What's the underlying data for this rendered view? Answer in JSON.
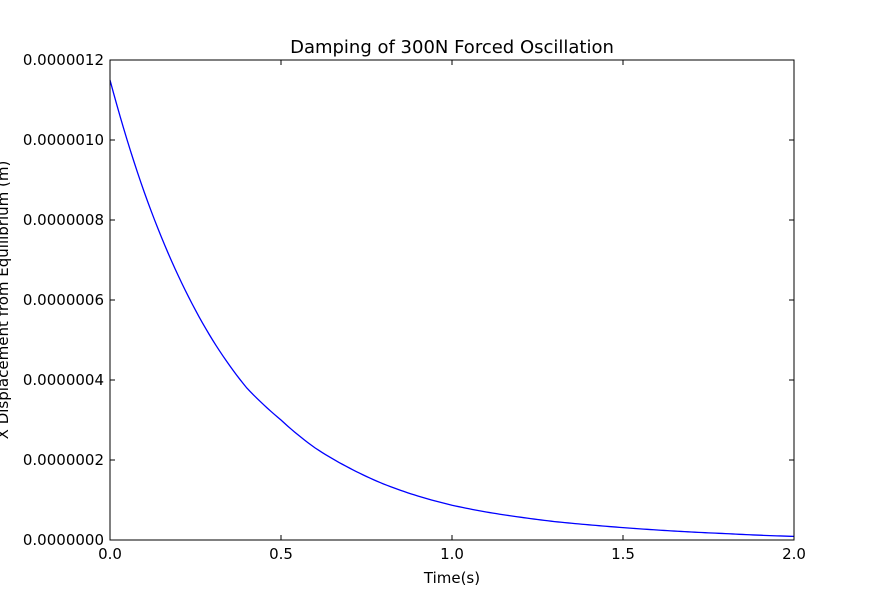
{
  "chart_data": {
    "type": "line",
    "title": "Damping of 300N Forced Oscillation",
    "xlabel": "Time(s)",
    "ylabel": "X Displacement from Equilibrium (m)",
    "xlim": [
      0,
      2.0
    ],
    "ylim": [
      0,
      1.2e-06
    ],
    "x_ticks": [
      0,
      0.5,
      1.0,
      1.5,
      2.0
    ],
    "x_tick_labels": [
      "0.0",
      "0.5",
      "1.0",
      "1.5",
      "2.0"
    ],
    "y_ticks": [
      0,
      2e-07,
      4e-07,
      6e-07,
      8e-07,
      1e-06,
      1.2e-06
    ],
    "y_tick_labels": [
      "0.0000000",
      "0.0000002",
      "0.0000004",
      "0.0000006",
      "0.0000008",
      "0.0000010",
      "0.0000012"
    ],
    "grid": false,
    "series": [
      {
        "color": "#0000ff",
        "x": [
          0,
          0.1,
          0.2,
          0.3,
          0.4,
          0.5,
          0.6,
          0.7,
          0.8,
          0.9,
          1.0,
          1.1,
          1.2,
          1.3,
          1.4,
          1.5,
          1.6,
          1.7,
          1.8,
          1.9,
          2.0
        ],
        "y": [
          1.15e-06,
          8.7e-07,
          6.6e-07,
          5e-07,
          3.8e-07,
          3e-07,
          2.3e-07,
          1.8e-07,
          1.4e-07,
          1.1e-07,
          8.7e-08,
          7e-08,
          5.7e-08,
          4.6e-08,
          3.8e-08,
          3.1e-08,
          2.5e-08,
          2e-08,
          1.6e-08,
          1.2e-08,
          9e-09
        ]
      }
    ]
  }
}
